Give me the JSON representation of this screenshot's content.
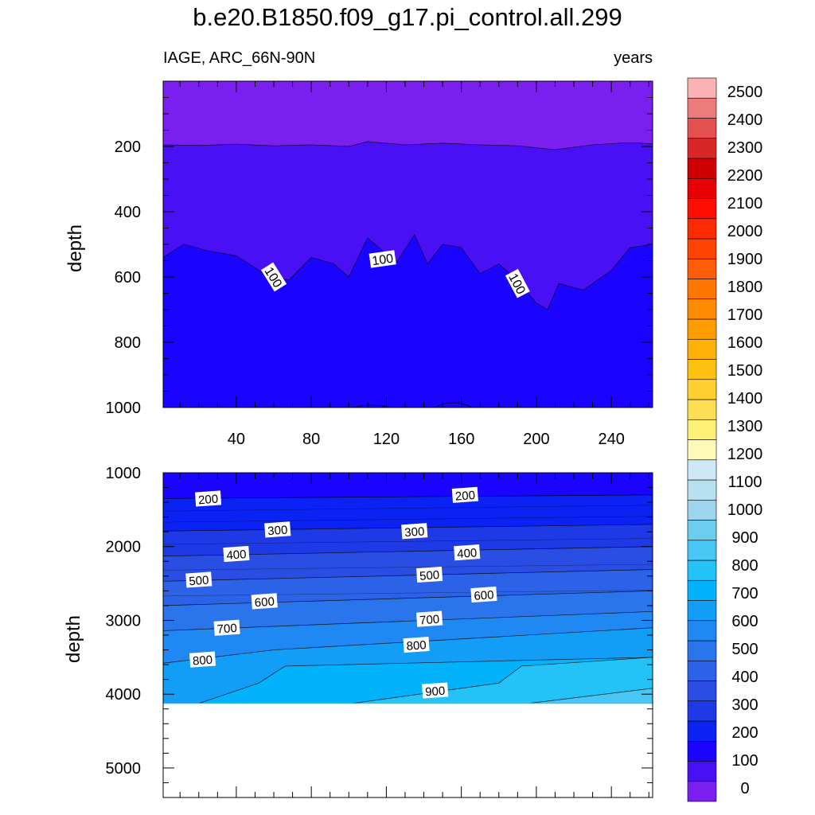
{
  "title": "b.e20.B1850.f09_g17.pi_control.all.299",
  "subtitle_left": "IAGE, ARC_66N-90N",
  "subtitle_right": "years",
  "chart_data": [
    {
      "type": "contour",
      "panel": "upper",
      "ylabel": "depth",
      "xlim": [
        1,
        262
      ],
      "ylim": [
        1000,
        0
      ],
      "xticks": [
        40,
        80,
        120,
        160,
        200,
        240
      ],
      "xtick_labels": [
        "40",
        "80",
        "120",
        "160",
        "200",
        "240"
      ],
      "yticks": [
        200,
        400,
        600,
        800,
        1000
      ],
      "ytick_labels": [
        "200",
        "400",
        "600",
        "800",
        "1000"
      ],
      "contour_labels": [
        {
          "text": "100",
          "x": 60,
          "y": 600
        },
        {
          "text": "100",
          "x": 118,
          "y": 545
        },
        {
          "text": "100",
          "x": 190,
          "y": 620
        }
      ],
      "isolines": [
        {
          "level": 0,
          "x": [
            1,
            20,
            40,
            60,
            80,
            100,
            110,
            130,
            150,
            170,
            190,
            210,
            230,
            250,
            262
          ],
          "y": [
            195,
            197,
            193,
            198,
            195,
            200,
            185,
            195,
            190,
            195,
            198,
            210,
            195,
            188,
            192
          ]
        },
        {
          "level": 100,
          "x": [
            1,
            12,
            25,
            40,
            55,
            68,
            80,
            92,
            100,
            110,
            118,
            125,
            135,
            142,
            150,
            160,
            170,
            180,
            190,
            200,
            206,
            212,
            225,
            240,
            250,
            262
          ],
          "y": [
            540,
            500,
            520,
            535,
            590,
            610,
            540,
            560,
            600,
            480,
            520,
            560,
            470,
            560,
            500,
            510,
            590,
            560,
            610,
            680,
            700,
            620,
            640,
            580,
            510,
            500
          ]
        }
      ]
    },
    {
      "type": "contour",
      "panel": "lower",
      "ylabel": "depth",
      "xlim": [
        1,
        262
      ],
      "ylim": [
        5400,
        1000
      ],
      "yticks": [
        1000,
        2000,
        3000,
        4000,
        5000
      ],
      "ytick_labels": [
        "1000",
        "2000",
        "3000",
        "4000",
        "5000"
      ],
      "valid_max_depth": 4125,
      "contour_levels": [
        200,
        300,
        400,
        500,
        600,
        700,
        800,
        900
      ],
      "contour_labels": [
        {
          "text": "200",
          "x": 25,
          "y": 1350
        },
        {
          "text": "200",
          "x": 162,
          "y": 1300
        },
        {
          "text": "300",
          "x": 62,
          "y": 1770
        },
        {
          "text": "300",
          "x": 135,
          "y": 1790
        },
        {
          "text": "400",
          "x": 40,
          "y": 2100
        },
        {
          "text": "400",
          "x": 163,
          "y": 2080
        },
        {
          "text": "500",
          "x": 20,
          "y": 2450
        },
        {
          "text": "500",
          "x": 143,
          "y": 2380
        },
        {
          "text": "600",
          "x": 55,
          "y": 2740
        },
        {
          "text": "600",
          "x": 172,
          "y": 2650
        },
        {
          "text": "700",
          "x": 35,
          "y": 3100
        },
        {
          "text": "700",
          "x": 143,
          "y": 2980
        },
        {
          "text": "800",
          "x": 22,
          "y": 3530
        },
        {
          "text": "800",
          "x": 136,
          "y": 3330
        },
        {
          "text": "900",
          "x": 146,
          "y": 3950
        }
      ],
      "isolines": [
        {
          "level": 200,
          "x": [
            1,
            262
          ],
          "y": [
            1350,
            1300
          ]
        },
        {
          "level": 300,
          "x": [
            1,
            262
          ],
          "y": [
            1790,
            1700
          ]
        },
        {
          "level": 400,
          "x": [
            1,
            262
          ],
          "y": [
            2130,
            2000
          ]
        },
        {
          "level": 500,
          "x": [
            1,
            262
          ],
          "y": [
            2470,
            2310
          ]
        },
        {
          "level": 600,
          "x": [
            1,
            262
          ],
          "y": [
            2800,
            2600
          ]
        },
        {
          "level": 700,
          "x": [
            1,
            262
          ],
          "y": [
            3140,
            2880
          ]
        },
        {
          "level": 800,
          "x": [
            1,
            60,
            262
          ],
          "y": [
            3580,
            3400,
            3100
          ]
        },
        {
          "level": 900,
          "x": [
            20,
            52,
            66,
            262
          ],
          "y": [
            4125,
            3850,
            3620,
            3500
          ]
        },
        {
          "level": 1000,
          "x": [
            102,
            180,
            192,
            262
          ],
          "y": [
            4125,
            3850,
            3620,
            3500
          ]
        },
        {
          "level": 1000,
          "x": [
            196,
            262
          ],
          "y": [
            4125,
            3920
          ]
        }
      ]
    }
  ],
  "colorbar": {
    "labels": [
      "0",
      "100",
      "200",
      "300",
      "400",
      "500",
      "600",
      "700",
      "800",
      "900",
      "1000",
      "1100",
      "1200",
      "1300",
      "1400",
      "1500",
      "1600",
      "1700",
      "1800",
      "1900",
      "2000",
      "2100",
      "2200",
      "2300",
      "2400",
      "2500"
    ],
    "colors": [
      "#7a1ff0",
      "#4a10f5",
      "#1a04ff",
      "#0b22f5",
      "#1e3ae6",
      "#2a4ee3",
      "#2c62e8",
      "#2a75ec",
      "#2088f2",
      "#129ef7",
      "#02b3fc",
      "#23c3f8",
      "#48c6f4",
      "#6ccdee",
      "#9dd6ec",
      "#b7e0f1",
      "#cfe8f5",
      "#fef9b6",
      "#fef178",
      "#fede55",
      "#fecf2e",
      "#fec10f",
      "#feb106",
      "#fe9c02",
      "#fe8a02",
      "#fe7601",
      "#fe5e07",
      "#fe4303",
      "#fe2a04",
      "#fe0e02",
      "#e80102",
      "#cf0002",
      "#d92626",
      "#e45050",
      "#ee7b7b",
      "#fbb2b2"
    ]
  }
}
